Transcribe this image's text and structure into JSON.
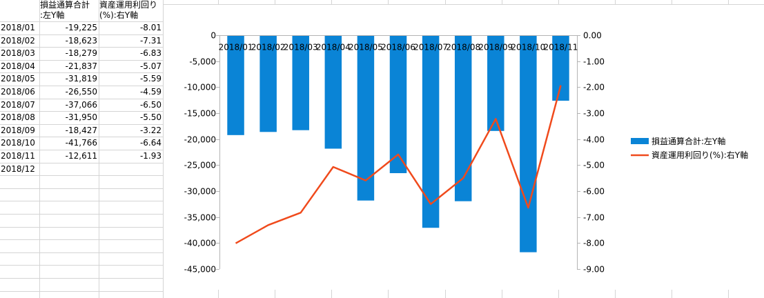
{
  "sheet": {
    "headers": {
      "col_b": [
        "損益通算合計",
        ":左Y軸"
      ],
      "col_c": [
        "資産運用利回り",
        "(%):右Y軸"
      ]
    },
    "rows": [
      {
        "month": "2018/01",
        "profit": "-19,225",
        "yield": "-8.01"
      },
      {
        "month": "2018/02",
        "profit": "-18,623",
        "yield": "-7.31"
      },
      {
        "month": "2018/03",
        "profit": "-18,279",
        "yield": "-6.83"
      },
      {
        "month": "2018/04",
        "profit": "-21,837",
        "yield": "-5.07"
      },
      {
        "month": "2018/05",
        "profit": "-31,819",
        "yield": "-5.59"
      },
      {
        "month": "2018/06",
        "profit": "-26,550",
        "yield": "-4.59"
      },
      {
        "month": "2018/07",
        "profit": "-37,066",
        "yield": "-6.50"
      },
      {
        "month": "2018/08",
        "profit": "-31,950",
        "yield": "-5.50"
      },
      {
        "month": "2018/09",
        "profit": "-18,427",
        "yield": "-3.22"
      },
      {
        "month": "2018/10",
        "profit": "-41,766",
        "yield": "-6.64"
      },
      {
        "month": "2018/11",
        "profit": "-12,611",
        "yield": "-1.93"
      },
      {
        "month": "2018/12",
        "profit": "",
        "yield": ""
      }
    ]
  },
  "chart_data": {
    "type": "bar",
    "categories": [
      "2018/01",
      "2018/02",
      "2018/03",
      "2018/04",
      "2018/05",
      "2018/06",
      "2018/07",
      "2018/08",
      "2018/09",
      "2018/10",
      "2018/11"
    ],
    "series": [
      {
        "name": "損益通算合計:左Y軸",
        "type": "bar",
        "axis": "left",
        "color": "#0A84D6",
        "values": [
          -19225,
          -18623,
          -18279,
          -21837,
          -31819,
          -26550,
          -37066,
          -31950,
          -18427,
          -41766,
          -12611
        ]
      },
      {
        "name": "資産運用利回り(%):右Y軸",
        "type": "line",
        "axis": "right",
        "color": "#F04A1C",
        "values": [
          -8.01,
          -7.31,
          -6.83,
          -5.07,
          -5.59,
          -4.59,
          -6.5,
          -5.5,
          -3.22,
          -6.64,
          -1.93
        ]
      }
    ],
    "y_left": {
      "lim": [
        -45000,
        0
      ],
      "ticks": [
        0,
        -5000,
        -10000,
        -15000,
        -20000,
        -25000,
        -30000,
        -35000,
        -40000,
        -45000
      ],
      "tick_labels": [
        "0",
        "-5,000",
        "-10,000",
        "-15,000",
        "-20,000",
        "-25,000",
        "-30,000",
        "-35,000",
        "-40,000",
        "-45,000"
      ]
    },
    "y_right": {
      "lim": [
        -9,
        0
      ],
      "ticks": [
        0,
        -1,
        -2,
        -3,
        -4,
        -5,
        -6,
        -7,
        -8,
        -9
      ],
      "tick_labels": [
        "0.00",
        "-1.00",
        "-2.00",
        "-3.00",
        "-4.00",
        "-5.00",
        "-6.00",
        "-7.00",
        "-8.00",
        "-9.00"
      ]
    },
    "xaxis_position": "top",
    "grid": false,
    "legend": "right"
  }
}
